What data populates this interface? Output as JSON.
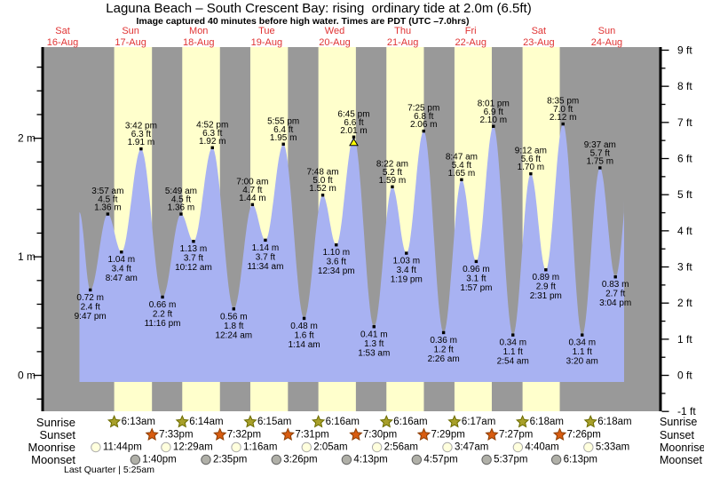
{
  "title": "Laguna Beach – South Crescent Bay: rising  ordinary tide at 2.0m (6.5ft)",
  "subtitle": "Image captured 40 minutes before high water. Times are PDT (UTC –7.0hrs)",
  "colors": {
    "night_band": "#999999",
    "day_band": "#ffffcc",
    "tide_fill": "#a8b2f2",
    "day_label": "#e03333",
    "axis": "#000000",
    "annotation_text": "#000000",
    "sunrise_star_fill": "#a8a02a",
    "sunrise_star_stroke": "#6b6b00",
    "sunset_star_fill": "#d85c10",
    "sunset_star_stroke": "#8a3c00",
    "moonrise_fill": "#ffffdd",
    "moonrise_stroke": "#aaaaaa",
    "moonset_fill": "#b0b0a8",
    "moonset_stroke": "#606060",
    "now_marker_fill": "#ffff00",
    "now_marker_stroke": "#000000"
  },
  "chart_data": {
    "type": "area",
    "title": "Laguna Beach – South Crescent Bay: rising  ordinary tide at 2.0m (6.5ft)",
    "subtitle": "Image captured 40 minutes before high water. Times are PDT (UTC –7.0hrs)",
    "y_axis_left": {
      "unit": "m",
      "major_labels": [
        "2 m",
        "1 m",
        "0 m"
      ],
      "major_values": [
        2,
        1,
        0
      ],
      "minor_step": 0.2,
      "minor_min": -0.2,
      "minor_max": 2.6
    },
    "y_axis_right": {
      "unit": "ft",
      "major_values": [
        9,
        8,
        7,
        6,
        5,
        4,
        3,
        2,
        1,
        0,
        -1
      ],
      "major_labels": [
        "9 ft",
        "8 ft",
        "7 ft",
        "6 ft",
        "5 ft",
        "4 ft",
        "3 ft",
        "2 ft",
        "1 ft",
        "0 ft",
        "-1 ft"
      ]
    },
    "days": [
      {
        "dow": "Sat",
        "date": "16-Aug"
      },
      {
        "dow": "Sun",
        "date": "17-Aug"
      },
      {
        "dow": "Mon",
        "date": "18-Aug"
      },
      {
        "dow": "Tue",
        "date": "19-Aug"
      },
      {
        "dow": "Wed",
        "date": "20-Aug"
      },
      {
        "dow": "Thu",
        "date": "21-Aug"
      },
      {
        "dow": "Fri",
        "date": "22-Aug"
      },
      {
        "dow": "Sat",
        "date": "23-Aug"
      },
      {
        "dow": "Sun",
        "date": "24-Aug"
      }
    ],
    "extremes": [
      {
        "kind": "edge",
        "t": 17.96,
        "h": 1.375
      },
      {
        "kind": "low",
        "t": 21.7833,
        "h": 0.72,
        "time": "9:47 pm",
        "ft": "2.4 ft",
        "m": "0.72 m"
      },
      {
        "kind": "high",
        "t": 27.95,
        "h": 1.36,
        "time": "3:57 am",
        "ft": "4.5 ft",
        "m": "1.36 m"
      },
      {
        "kind": "low",
        "t": 32.7833,
        "h": 1.04,
        "time": "8:47 am",
        "ft": "3.4 ft",
        "m": "1.04 m"
      },
      {
        "kind": "high",
        "t": 39.7,
        "h": 1.91,
        "time": "3:42 pm",
        "ft": "6.3 ft",
        "m": "1.91 m"
      },
      {
        "kind": "low",
        "t": 47.2667,
        "h": 0.66,
        "time": "11:16 pm",
        "ft": "2.2 ft",
        "m": "0.66 m"
      },
      {
        "kind": "high",
        "t": 53.8167,
        "h": 1.36,
        "time": "5:49 am",
        "ft": "4.5 ft",
        "m": "1.36 m"
      },
      {
        "kind": "low",
        "t": 58.2,
        "h": 1.13,
        "time": "10:12 am",
        "ft": "3.7 ft",
        "m": "1.13 m"
      },
      {
        "kind": "high",
        "t": 64.8667,
        "h": 1.92,
        "time": "4:52 pm",
        "ft": "6.3 ft",
        "m": "1.92 m"
      },
      {
        "kind": "low",
        "t": 72.4,
        "h": 0.56,
        "time": "12:24 am",
        "ft": "1.8 ft",
        "m": "0.56 m"
      },
      {
        "kind": "high",
        "t": 79.0,
        "h": 1.44,
        "time": "7:00 am",
        "ft": "4.7 ft",
        "m": "1.44 m"
      },
      {
        "kind": "low",
        "t": 83.5667,
        "h": 1.14,
        "time": "11:34 am",
        "ft": "3.7 ft",
        "m": "1.14 m"
      },
      {
        "kind": "high",
        "t": 89.9167,
        "h": 1.95,
        "time": "5:55 pm",
        "ft": "6.4 ft",
        "m": "1.95 m"
      },
      {
        "kind": "low",
        "t": 97.2333,
        "h": 0.48,
        "time": "1:14 am",
        "ft": "1.6 ft",
        "m": "0.48 m"
      },
      {
        "kind": "high",
        "t": 103.8,
        "h": 1.52,
        "time": "7:48 am",
        "ft": "5.0 ft",
        "m": "1.52 m"
      },
      {
        "kind": "low",
        "t": 108.5667,
        "h": 1.1,
        "time": "12:34 pm",
        "ft": "3.6 ft",
        "m": "1.10 m"
      },
      {
        "kind": "high",
        "t": 114.75,
        "h": 2.01,
        "time": "6:45 pm",
        "ft": "6.6 ft",
        "m": "2.01 m",
        "now_marker": true
      },
      {
        "kind": "low",
        "t": 121.8833,
        "h": 0.41,
        "time": "1:53 am",
        "ft": "1.3 ft",
        "m": "0.41 m"
      },
      {
        "kind": "high",
        "t": 128.3667,
        "h": 1.59,
        "time": "8:22 am",
        "ft": "5.2 ft",
        "m": "1.59 m"
      },
      {
        "kind": "low",
        "t": 133.3167,
        "h": 1.03,
        "time": "1:19 pm",
        "ft": "3.4 ft",
        "m": "1.03 m"
      },
      {
        "kind": "high",
        "t": 139.4167,
        "h": 2.06,
        "time": "7:25 pm",
        "ft": "6.8 ft",
        "m": "2.06 m"
      },
      {
        "kind": "low",
        "t": 146.4333,
        "h": 0.36,
        "time": "2:26 am",
        "ft": "1.2 ft",
        "m": "0.36 m"
      },
      {
        "kind": "high",
        "t": 152.7833,
        "h": 1.65,
        "time": "8:47 am",
        "ft": "5.4 ft",
        "m": "1.65 m"
      },
      {
        "kind": "low",
        "t": 157.95,
        "h": 0.96,
        "time": "1:57 pm",
        "ft": "3.1 ft",
        "m": "0.96 m"
      },
      {
        "kind": "high",
        "t": 164.0167,
        "h": 2.1,
        "time": "8:01 pm",
        "ft": "6.9 ft",
        "m": "2.10 m"
      },
      {
        "kind": "low",
        "t": 170.9,
        "h": 0.34,
        "time": "2:54 am",
        "ft": "1.1 ft",
        "m": "0.34 m"
      },
      {
        "kind": "high",
        "t": 177.2,
        "h": 1.7,
        "time": "9:12 am",
        "ft": "5.6 ft",
        "m": "1.70 m"
      },
      {
        "kind": "low",
        "t": 182.5167,
        "h": 0.89,
        "time": "2:31 pm",
        "ft": "2.9 ft",
        "m": "0.89 m"
      },
      {
        "kind": "high",
        "t": 188.5833,
        "h": 2.12,
        "time": "8:35 pm",
        "ft": "7.0 ft",
        "m": "2.12 m"
      },
      {
        "kind": "low",
        "t": 195.3333,
        "h": 0.34,
        "time": "3:20 am",
        "ft": "1.1 ft",
        "m": "0.34 m"
      },
      {
        "kind": "high",
        "t": 201.6167,
        "h": 1.75,
        "time": "9:37 am",
        "ft": "5.7 ft",
        "m": "1.75 m"
      },
      {
        "kind": "low",
        "t": 207.0667,
        "h": 0.83,
        "time": "3:04 pm",
        "ft": "2.7 ft",
        "m": "0.83 m"
      },
      {
        "kind": "edge",
        "t": 213.8,
        "h": 2.13
      }
    ],
    "sunrise": [
      {
        "t": 30.2167,
        "label": "6:13am"
      },
      {
        "t": 54.2333,
        "label": "6:14am"
      },
      {
        "t": 78.25,
        "label": "6:15am"
      },
      {
        "t": 102.2667,
        "label": "6:16am"
      },
      {
        "t": 126.2667,
        "label": "6:16am"
      },
      {
        "t": 150.2833,
        "label": "6:17am"
      },
      {
        "t": 174.3,
        "label": "6:18am"
      },
      {
        "t": 198.3,
        "label": "6:18am"
      }
    ],
    "sunset": [
      {
        "t": 43.55,
        "label": "7:33pm"
      },
      {
        "t": 67.5333,
        "label": "7:32pm"
      },
      {
        "t": 91.5167,
        "label": "7:31pm"
      },
      {
        "t": 115.5,
        "label": "7:30pm"
      },
      {
        "t": 139.4833,
        "label": "7:29pm"
      },
      {
        "t": 163.45,
        "label": "7:27pm"
      },
      {
        "t": 187.4333,
        "label": "7:26pm"
      }
    ],
    "moonrise": [
      {
        "t": 23.7333,
        "label": "11:44pm"
      },
      {
        "t": 48.4833,
        "label": "12:29am"
      },
      {
        "t": 73.2667,
        "label": "1:16am"
      },
      {
        "t": 98.0833,
        "label": "2:05am"
      },
      {
        "t": 122.9333,
        "label": "2:56am"
      },
      {
        "t": 147.7833,
        "label": "3:47am"
      },
      {
        "t": 172.6667,
        "label": "4:40am"
      },
      {
        "t": 197.55,
        "label": "5:33am"
      }
    ],
    "moonset": [
      {
        "t": 37.6667,
        "label": "1:40pm"
      },
      {
        "t": 62.5833,
        "label": "2:35pm"
      },
      {
        "t": 87.4333,
        "label": "3:26pm"
      },
      {
        "t": 112.2167,
        "label": "4:13pm"
      },
      {
        "t": 136.95,
        "label": "4:57pm"
      },
      {
        "t": 161.6167,
        "label": "5:37pm"
      },
      {
        "t": 186.2167,
        "label": "6:13pm"
      }
    ],
    "row_labels": {
      "sunrise": "Sunrise",
      "sunset": "Sunset",
      "moonrise": "Moonrise",
      "moonset": "Moonset"
    },
    "moon_phase": "Last Quarter | 5:25am"
  }
}
